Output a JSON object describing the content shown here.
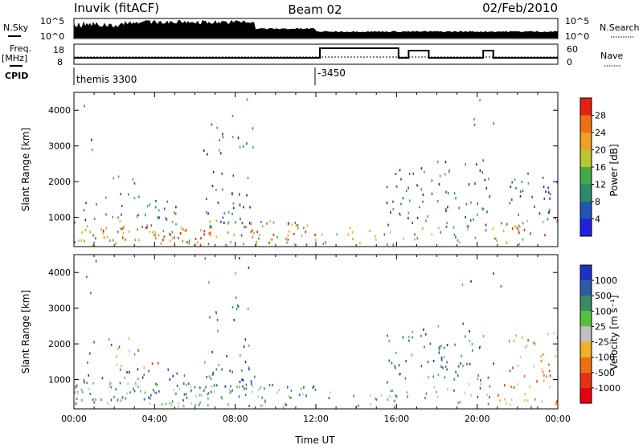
{
  "header": {
    "station": "Inuvik (fitACF)",
    "beam": "Beam 02",
    "date": "02/Feb/2010"
  },
  "panels": {
    "nsky_label": "N.Sky",
    "nsearch_label": "N.Search",
    "freq_label_1": "Freq.",
    "freq_label_2": "[MHz]",
    "nave_label": "Nave",
    "cpid_label": "CPID",
    "nsky_ticks": [
      "10^5",
      "10^0"
    ],
    "nsearch_ticks": [
      "10^5",
      "10^0"
    ],
    "freq_ticks": [
      "18",
      "8"
    ],
    "nave_ticks": [
      "60",
      "0"
    ],
    "cpid_segments": [
      {
        "start_h": 0.0,
        "label": "themis 3300"
      },
      {
        "start_h": 12.0,
        "label": "-3450"
      }
    ]
  },
  "chart_data": [
    {
      "type": "heatmap",
      "name": "power-panel",
      "ylabel": "Slant Range [km]",
      "xlabel": "",
      "ylim": [
        180,
        4500
      ],
      "xlim_hours": [
        0,
        24
      ],
      "y_ticks": [
        "1000",
        "2000",
        "3000",
        "4000"
      ],
      "colorbar_label": "Power [dB]",
      "colorbar_ticks": [
        "4",
        "8",
        "12",
        "16",
        "20",
        "24",
        "28"
      ],
      "colorbar_colors": [
        "#2020e0",
        "#2255b8",
        "#2a8a6a",
        "#45aa45",
        "#b8c830",
        "#f0a020",
        "#f07010",
        "#e82010"
      ]
    },
    {
      "type": "heatmap",
      "name": "velocity-panel",
      "ylabel": "Slant Range [km]",
      "xlabel": "Time UT",
      "ylim": [
        180,
        4500
      ],
      "xlim_hours": [
        0,
        24
      ],
      "y_ticks": [
        "1000",
        "2000",
        "3000",
        "4000"
      ],
      "x_ticks": [
        "00:00",
        "04:00",
        "08:00",
        "12:00",
        "16:00",
        "20:00",
        "00:00"
      ],
      "colorbar_label": "Velocity [m s⁻¹]",
      "colorbar_ticks": [
        "1000",
        "500",
        "100",
        "25",
        "-25",
        "-100",
        "-500",
        "-1000"
      ],
      "colorbar_colors": [
        "#2030c8",
        "#2a5ca8",
        "#3a8a60",
        "#58c040",
        "#c0c0c0",
        "#f0b020",
        "#f07010",
        "#e83010",
        "#e80010"
      ]
    }
  ]
}
